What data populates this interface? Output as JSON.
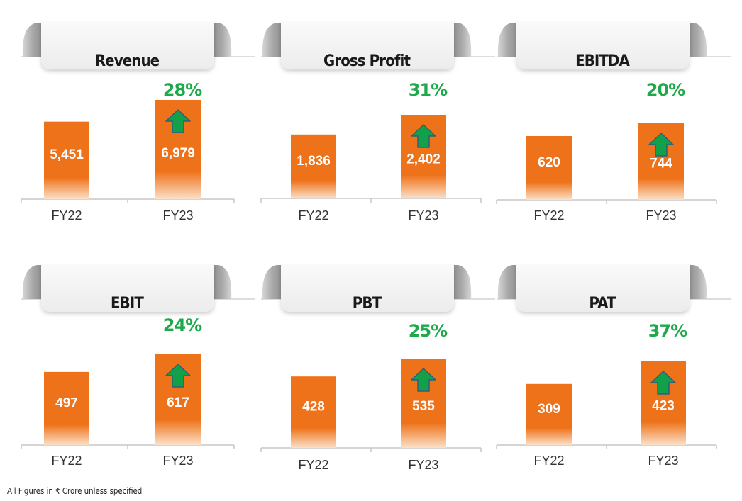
{
  "footnote": "All Figures in ₹ Crore unless specified",
  "colors": {
    "bar": "#ee7219",
    "bar_light": "#fbe0c8",
    "growth_text": "#1eaa4a",
    "arrow": "#12a14a",
    "arrow_stroke": "#2e5f7a",
    "banner": "#ececec",
    "axis": "#c7c7c7"
  },
  "chart_data": [
    {
      "type": "bar",
      "title": "Revenue",
      "categories": [
        "FY22",
        "FY23"
      ],
      "values": [
        5451,
        6979
      ],
      "value_labels": [
        "5,451",
        "6,979"
      ],
      "growth_label": "28%"
    },
    {
      "type": "bar",
      "title": "Gross Profit",
      "categories": [
        "FY22",
        "FY23"
      ],
      "values": [
        1836,
        2402
      ],
      "value_labels": [
        "1,836",
        "2,402"
      ],
      "growth_label": "31%"
    },
    {
      "type": "bar",
      "title": "EBITDA",
      "categories": [
        "FY22",
        "FY23"
      ],
      "values": [
        620,
        744
      ],
      "value_labels": [
        "620",
        "744"
      ],
      "growth_label": "20%"
    },
    {
      "type": "bar",
      "title": "EBIT",
      "categories": [
        "FY22",
        "FY23"
      ],
      "values": [
        497,
        617
      ],
      "value_labels": [
        "497",
        "617"
      ],
      "growth_label": "24%"
    },
    {
      "type": "bar",
      "title": "PBT",
      "categories": [
        "FY22",
        "FY23"
      ],
      "values": [
        428,
        535
      ],
      "value_labels": [
        "428",
        "535"
      ],
      "growth_label": "25%"
    },
    {
      "type": "bar",
      "title": "PAT",
      "categories": [
        "FY22",
        "FY23"
      ],
      "values": [
        309,
        423
      ],
      "value_labels": [
        "309",
        "423"
      ],
      "growth_label": "37%"
    }
  ]
}
